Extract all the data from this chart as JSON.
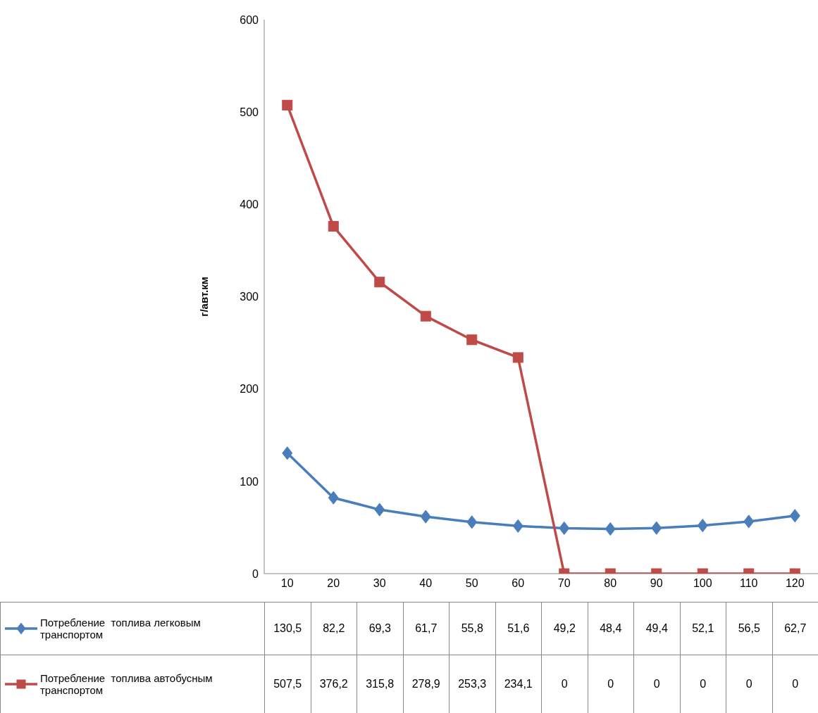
{
  "chart_data": {
    "type": "line",
    "ylabel": "г/авт.км",
    "categories": [
      "10",
      "20",
      "30",
      "40",
      "50",
      "60",
      "70",
      "80",
      "90",
      "100",
      "110",
      "120"
    ],
    "series": [
      {
        "name": "Потребление  топлива легковым транспортом",
        "color": "#4a7ebb",
        "marker": "diamond",
        "values": [
          130.5,
          82.2,
          69.3,
          61.7,
          55.8,
          51.6,
          49.2,
          48.4,
          49.4,
          52.1,
          56.5,
          62.7
        ],
        "value_labels": [
          "130,5",
          "82,2",
          "69,3",
          "61,7",
          "55,8",
          "51,6",
          "49,2",
          "48,4",
          "49,4",
          "52,1",
          "56,5",
          "62,7"
        ]
      },
      {
        "name": "Потребление  топлива автобусным транспортом",
        "color": "#be4b48",
        "marker": "square",
        "values": [
          507.5,
          376.2,
          315.8,
          278.9,
          253.3,
          234.1,
          0,
          0,
          0,
          0,
          0,
          0
        ],
        "value_labels": [
          "507,5",
          "376,2",
          "315,8",
          "278,9",
          "253,3",
          "234,1",
          "0",
          "0",
          "0",
          "0",
          "0",
          "0"
        ]
      }
    ],
    "ylim": [
      0,
      600
    ],
    "yticks": [
      0,
      100,
      200,
      300,
      400,
      500,
      600
    ],
    "grid": false,
    "legend": "bottom"
  }
}
